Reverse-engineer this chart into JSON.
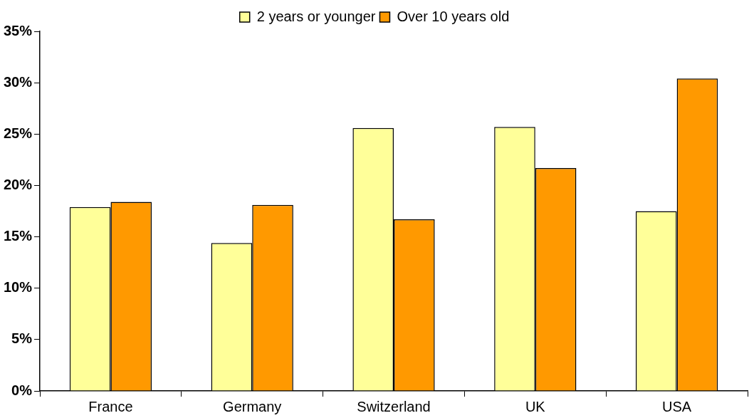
{
  "chart_data": {
    "type": "bar",
    "categories": [
      "France",
      "Germany",
      "Switzerland",
      "UK",
      "USA"
    ],
    "series": [
      {
        "name": "2 years or younger",
        "color": "#ffff99",
        "values": [
          17.9,
          14.4,
          25.6,
          25.7,
          17.5
        ]
      },
      {
        "name": "Over 10 years old",
        "color": "#ff9900",
        "values": [
          18.4,
          18.1,
          16.7,
          21.7,
          30.4
        ]
      }
    ],
    "ylim": [
      0,
      35
    ],
    "yticks": [
      {
        "value": 0,
        "label": "0%"
      },
      {
        "value": 5,
        "label": "5%"
      },
      {
        "value": 10,
        "label": "10%"
      },
      {
        "value": 15,
        "label": "15%"
      },
      {
        "value": 20,
        "label": "20%"
      },
      {
        "value": 25,
        "label": "25%"
      },
      {
        "value": 30,
        "label": "30%"
      },
      {
        "value": 35,
        "label": "35%"
      }
    ],
    "grid": false,
    "legend": "top"
  }
}
